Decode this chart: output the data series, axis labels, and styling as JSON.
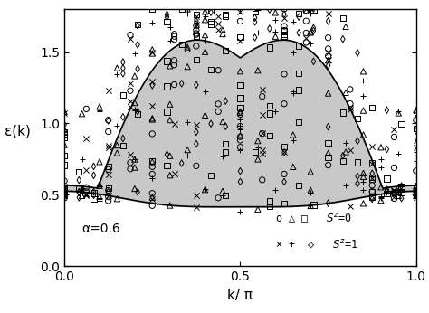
{
  "title": "",
  "xlabel": "k/ π",
  "ylabel": "ε(k)",
  "xlim": [
    0,
    1
  ],
  "ylim": [
    0,
    1.8
  ],
  "yticks": [
    0,
    0.5,
    1,
    1.5
  ],
  "xticks": [
    0,
    0.5,
    1
  ],
  "alpha_label": "α=0.6",
  "bg_color": "#c8c8c8",
  "line_color": "#000000",
  "figsize": [
    4.74,
    3.46
  ],
  "dpi": 100
}
